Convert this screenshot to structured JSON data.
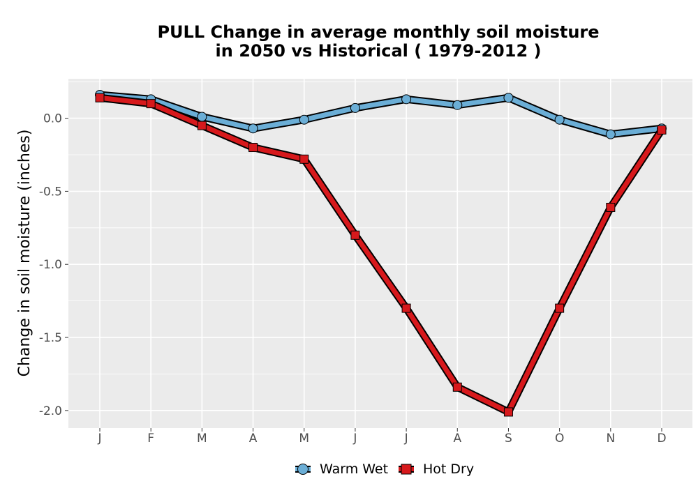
{
  "chart_data": {
    "type": "line",
    "title_line1": "PULL  Change in average monthly soil moisture",
    "title_line2": "in 2050 vs Historical ( 1979-2012 )",
    "ylabel": "Change in soil moisture (inches)",
    "xlabel": "",
    "categories": [
      "J",
      "F",
      "M",
      "A",
      "M",
      "J",
      "J",
      "A",
      "S",
      "O",
      "N",
      "D"
    ],
    "ylim": [
      -2.12,
      0.27
    ],
    "yticks": [
      0.0,
      -0.5,
      -1.0,
      -1.5,
      -2.0
    ],
    "ytick_labels": [
      "0.0",
      "-0.5",
      "-1.0",
      "-1.5",
      "-2.0"
    ],
    "grid": true,
    "legend_position": "bottom",
    "series": [
      {
        "name": "Warm Wet",
        "color": "#6baed6",
        "marker": "circle",
        "values": [
          0.16,
          0.13,
          0.01,
          -0.07,
          -0.01,
          0.07,
          0.13,
          0.09,
          0.14,
          -0.01,
          -0.11,
          -0.07
        ]
      },
      {
        "name": "Hot Dry",
        "color": "#d7191c",
        "marker": "square",
        "values": [
          0.14,
          0.1,
          -0.05,
          -0.2,
          -0.28,
          -0.8,
          -1.3,
          -1.84,
          -2.01,
          -1.3,
          -0.61,
          -0.08
        ]
      }
    ]
  }
}
